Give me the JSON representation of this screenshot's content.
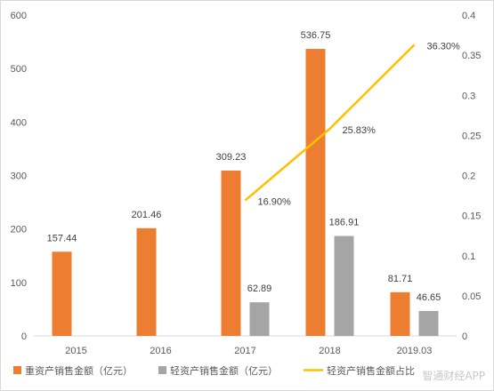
{
  "chart_data": {
    "type": "bar",
    "categories": [
      "2015",
      "2016",
      "2017",
      "2018",
      "2019.03"
    ],
    "series": [
      {
        "name": "重资产销售金额（亿元）",
        "kind": "bar",
        "axis": "left",
        "color": "#ED7D31",
        "values": [
          157.44,
          201.46,
          309.23,
          536.75,
          81.71
        ],
        "labels": [
          "157.44",
          "201.46",
          "309.23",
          "536.75",
          "81.71"
        ]
      },
      {
        "name": "轻资产销售金额（亿元）",
        "kind": "bar",
        "axis": "left",
        "color": "#A5A5A5",
        "values": [
          null,
          null,
          62.89,
          186.91,
          46.65
        ],
        "labels": [
          "",
          "",
          "62.89",
          "186.91",
          "46.65"
        ]
      },
      {
        "name": "轻资产销售金额占比",
        "kind": "line",
        "axis": "right",
        "color": "#FFC000",
        "values": [
          null,
          null,
          0.169,
          0.2583,
          0.363
        ],
        "labels": [
          "",
          "",
          "16.90%",
          "25.83%",
          "36.30%"
        ]
      }
    ],
    "left_axis": {
      "min": 0,
      "max": 600,
      "ticks": [
        "0",
        "100",
        "200",
        "300",
        "400",
        "500",
        "600"
      ]
    },
    "right_axis": {
      "min": 0,
      "max": 0.4,
      "ticks": [
        "0",
        "0.05",
        "0.1",
        "0.15",
        "0.2",
        "0.25",
        "0.3",
        "0.35",
        "0.4"
      ]
    },
    "grid": false,
    "legend_position": "bottom"
  },
  "watermark": "智通财经APP"
}
